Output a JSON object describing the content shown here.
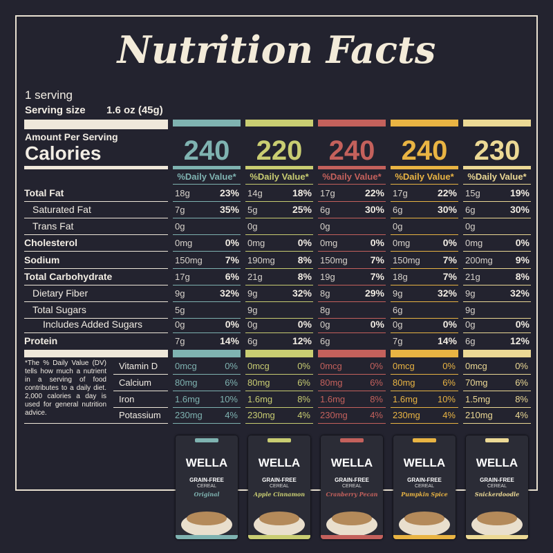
{
  "title": "Nutrition Facts",
  "servings": "1 serving",
  "serving_size_label": "Serving size",
  "serving_size": "1.6 oz (45g)",
  "amount_per_serving": "Amount Per Serving",
  "calories_label": "Calories",
  "daily_value_header": "%Daily Value*",
  "columns": [
    {
      "color": "#7fb3b1",
      "calories": 240
    },
    {
      "color": "#c9cd72",
      "calories": 220
    },
    {
      "color": "#c4615c",
      "calories": 240
    },
    {
      "color": "#e9b443",
      "calories": 240
    },
    {
      "color": "#ecd995",
      "calories": 230
    }
  ],
  "nutrients": [
    {
      "label": "Total Fat",
      "bold": true,
      "indent": 0,
      "values": [
        [
          "18g",
          "23%"
        ],
        [
          "14g",
          "18%"
        ],
        [
          "17g",
          "22%"
        ],
        [
          "17g",
          "22%"
        ],
        [
          "15g",
          "19%"
        ]
      ]
    },
    {
      "label": "Saturated Fat",
      "bold": false,
      "indent": 1,
      "values": [
        [
          "7g",
          "35%"
        ],
        [
          "5g",
          "25%"
        ],
        [
          "6g",
          "30%"
        ],
        [
          "6g",
          "30%"
        ],
        [
          "6g",
          "30%"
        ]
      ]
    },
    {
      "label": "Trans Fat",
      "bold": false,
      "indent": 1,
      "values": [
        [
          "0g"
        ],
        [
          "0g"
        ],
        [
          "0g"
        ],
        [
          "0g"
        ],
        [
          "0g"
        ]
      ]
    },
    {
      "label": "Cholesterol",
      "bold": true,
      "indent": 0,
      "values": [
        [
          "0mg",
          "0%"
        ],
        [
          "0mg",
          "0%"
        ],
        [
          "0mg",
          "0%"
        ],
        [
          "0mg",
          "0%"
        ],
        [
          "0mg",
          "0%"
        ]
      ]
    },
    {
      "label": "Sodium",
      "bold": true,
      "indent": 0,
      "values": [
        [
          "150mg",
          "7%"
        ],
        [
          "190mg",
          "8%"
        ],
        [
          "150mg",
          "7%"
        ],
        [
          "150mg",
          "7%"
        ],
        [
          "200mg",
          "9%"
        ]
      ]
    },
    {
      "label": "Total Carbohydrate",
      "bold": true,
      "indent": 0,
      "values": [
        [
          "17g",
          "6%"
        ],
        [
          "21g",
          "8%"
        ],
        [
          "19g",
          "7%"
        ],
        [
          "18g",
          "7%"
        ],
        [
          "21g",
          "8%"
        ]
      ]
    },
    {
      "label": "Dietary Fiber",
      "bold": false,
      "indent": 1,
      "values": [
        [
          "9g",
          "32%"
        ],
        [
          "9g",
          "32%"
        ],
        [
          "8g",
          "29%"
        ],
        [
          "9g",
          "32%"
        ],
        [
          "9g",
          "32%"
        ]
      ]
    },
    {
      "label": "Total Sugars",
      "bold": false,
      "indent": 1,
      "values": [
        [
          "5g"
        ],
        [
          "9g"
        ],
        [
          "8g"
        ],
        [
          "6g"
        ],
        [
          "9g"
        ]
      ]
    },
    {
      "label": "Includes Added Sugars",
      "bold": false,
      "indent": 2,
      "values": [
        [
          "0g",
          "0%"
        ],
        [
          "0g",
          "0%"
        ],
        [
          "0g",
          "0%"
        ],
        [
          "0g",
          "0%"
        ],
        [
          "0g",
          "0%"
        ]
      ]
    },
    {
      "label": "Protein",
      "bold": true,
      "indent": 0,
      "values": [
        [
          "7g",
          "14%"
        ],
        [
          "6g",
          "12%"
        ],
        [
          "6g"
        ],
        [
          "7g",
          "14%"
        ],
        [
          "6g",
          "12%"
        ]
      ]
    }
  ],
  "footnote": "*The % Daily Value (DV) tells how much a nutrient in a serving of food contributes to a daily diet. 2,000 calories a day is used for general nutrition advice.",
  "vitamins": [
    {
      "label": "Vitamin D",
      "values": [
        [
          "0mcg",
          "0%"
        ],
        [
          "0mcg",
          "0%"
        ],
        [
          "0mcg",
          "0%"
        ],
        [
          "0mcg",
          "0%"
        ],
        [
          "0mcg",
          "0%"
        ]
      ]
    },
    {
      "label": "Calcium",
      "values": [
        [
          "80mg",
          "6%"
        ],
        [
          "80mg",
          "6%"
        ],
        [
          "80mg",
          "6%"
        ],
        [
          "80mg",
          "6%"
        ],
        [
          "70mg",
          "6%"
        ]
      ]
    },
    {
      "label": "Iron",
      "values": [
        [
          "1.6mg",
          "10%"
        ],
        [
          "1.6mg",
          "8%"
        ],
        [
          "1.6mg",
          "8%"
        ],
        [
          "1.6mg",
          "10%"
        ],
        [
          "1.5mg",
          "8%"
        ]
      ]
    },
    {
      "label": "Potassium",
      "values": [
        [
          "230mg",
          "4%"
        ],
        [
          "230mg",
          "4%"
        ],
        [
          "230mg",
          "4%"
        ],
        [
          "230mg",
          "4%"
        ],
        [
          "210mg",
          "4%"
        ]
      ]
    }
  ],
  "products": [
    {
      "brand": "WELLA",
      "line1": "GRAIN-FREE",
      "line2": "CEREAL",
      "flavor": "Original"
    },
    {
      "brand": "WELLA",
      "line1": "GRAIN-FREE",
      "line2": "CEREAL",
      "flavor": "Apple Cinnamon"
    },
    {
      "brand": "WELLA",
      "line1": "GRAIN-FREE",
      "line2": "CEREAL",
      "flavor": "Cranberry Pecan"
    },
    {
      "brand": "WELLA",
      "line1": "GRAIN-FREE",
      "line2": "CEREAL",
      "flavor": "Pumpkin Spice"
    },
    {
      "brand": "WELLA",
      "line1": "GRAIN-FREE",
      "line2": "CEREAL",
      "flavor": "Snickerdoodle"
    }
  ]
}
